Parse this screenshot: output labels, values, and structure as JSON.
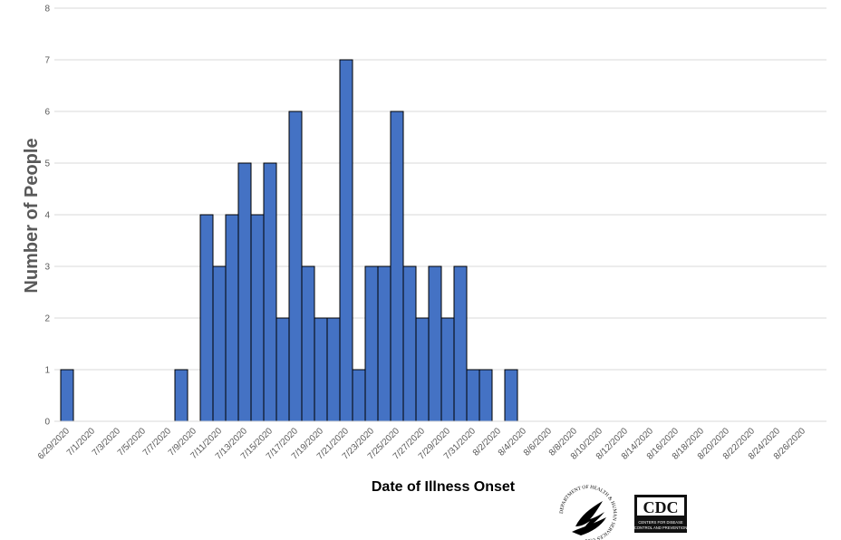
{
  "chart_data": {
    "type": "bar",
    "title": "",
    "xlabel": "Date of Illness Onset",
    "ylabel": "Number of People",
    "ylim": [
      0,
      8
    ],
    "yticks": [
      0,
      1,
      2,
      3,
      4,
      5,
      6,
      7,
      8
    ],
    "grid": true,
    "bar_color": "#4472C4",
    "bar_edge_color": "#000000",
    "categories": [
      "6/29/2020",
      "6/30/2020",
      "7/1/2020",
      "7/2/2020",
      "7/3/2020",
      "7/4/2020",
      "7/5/2020",
      "7/6/2020",
      "7/7/2020",
      "7/8/2020",
      "7/9/2020",
      "7/10/2020",
      "7/11/2020",
      "7/12/2020",
      "7/13/2020",
      "7/14/2020",
      "7/15/2020",
      "7/16/2020",
      "7/17/2020",
      "7/18/2020",
      "7/19/2020",
      "7/20/2020",
      "7/21/2020",
      "7/22/2020",
      "7/23/2020",
      "7/24/2020",
      "7/25/2020",
      "7/26/2020",
      "7/27/2020",
      "7/28/2020",
      "7/29/2020",
      "7/30/2020",
      "7/31/2020",
      "8/1/2020",
      "8/2/2020",
      "8/3/2020",
      "8/4/2020",
      "8/5/2020",
      "8/6/2020",
      "8/7/2020",
      "8/8/2020",
      "8/9/2020",
      "8/10/2020",
      "8/11/2020",
      "8/12/2020",
      "8/13/2020",
      "8/14/2020",
      "8/15/2020",
      "8/16/2020",
      "8/17/2020",
      "8/18/2020",
      "8/19/2020",
      "8/20/2020",
      "8/21/2020",
      "8/22/2020",
      "8/23/2020",
      "8/24/2020",
      "8/25/2020",
      "8/26/2020",
      "8/27/2020",
      "8/28/2020"
    ],
    "values": [
      1,
      0,
      0,
      0,
      0,
      0,
      0,
      0,
      0,
      1,
      0,
      4,
      3,
      4,
      5,
      4,
      5,
      2,
      6,
      3,
      2,
      2,
      7,
      1,
      3,
      3,
      6,
      3,
      2,
      3,
      2,
      3,
      1,
      1,
      0,
      1,
      0,
      0,
      0,
      0,
      0,
      0,
      0,
      0,
      0,
      0,
      0,
      0,
      0,
      0,
      0,
      0,
      0,
      0,
      0,
      0,
      0,
      0,
      0,
      0,
      0
    ],
    "x_tick_labels": [
      "6/29/2020",
      "7/1/2020",
      "7/3/2020",
      "7/5/2020",
      "7/7/2020",
      "7/9/2020",
      "7/11/2020",
      "7/13/2020",
      "7/15/2020",
      "7/17/2020",
      "7/19/2020",
      "7/21/2020",
      "7/23/2020",
      "7/25/2020",
      "7/27/2020",
      "7/29/2020",
      "7/31/2020",
      "8/2/2020",
      "8/4/2020",
      "8/6/2020",
      "8/8/2020",
      "8/10/2020",
      "8/12/2020",
      "8/14/2020",
      "8/16/2020",
      "8/18/2020",
      "8/20/2020",
      "8/22/2020",
      "8/24/2020",
      "8/26/2020"
    ]
  },
  "logos": {
    "hhs": "DEPARTMENT OF HEALTH & HUMAN SERVICES USA",
    "cdc": "CDC",
    "cdc_tagline_1": "CENTERS FOR DISEASE",
    "cdc_tagline_2": "CONTROL AND PREVENTION"
  }
}
